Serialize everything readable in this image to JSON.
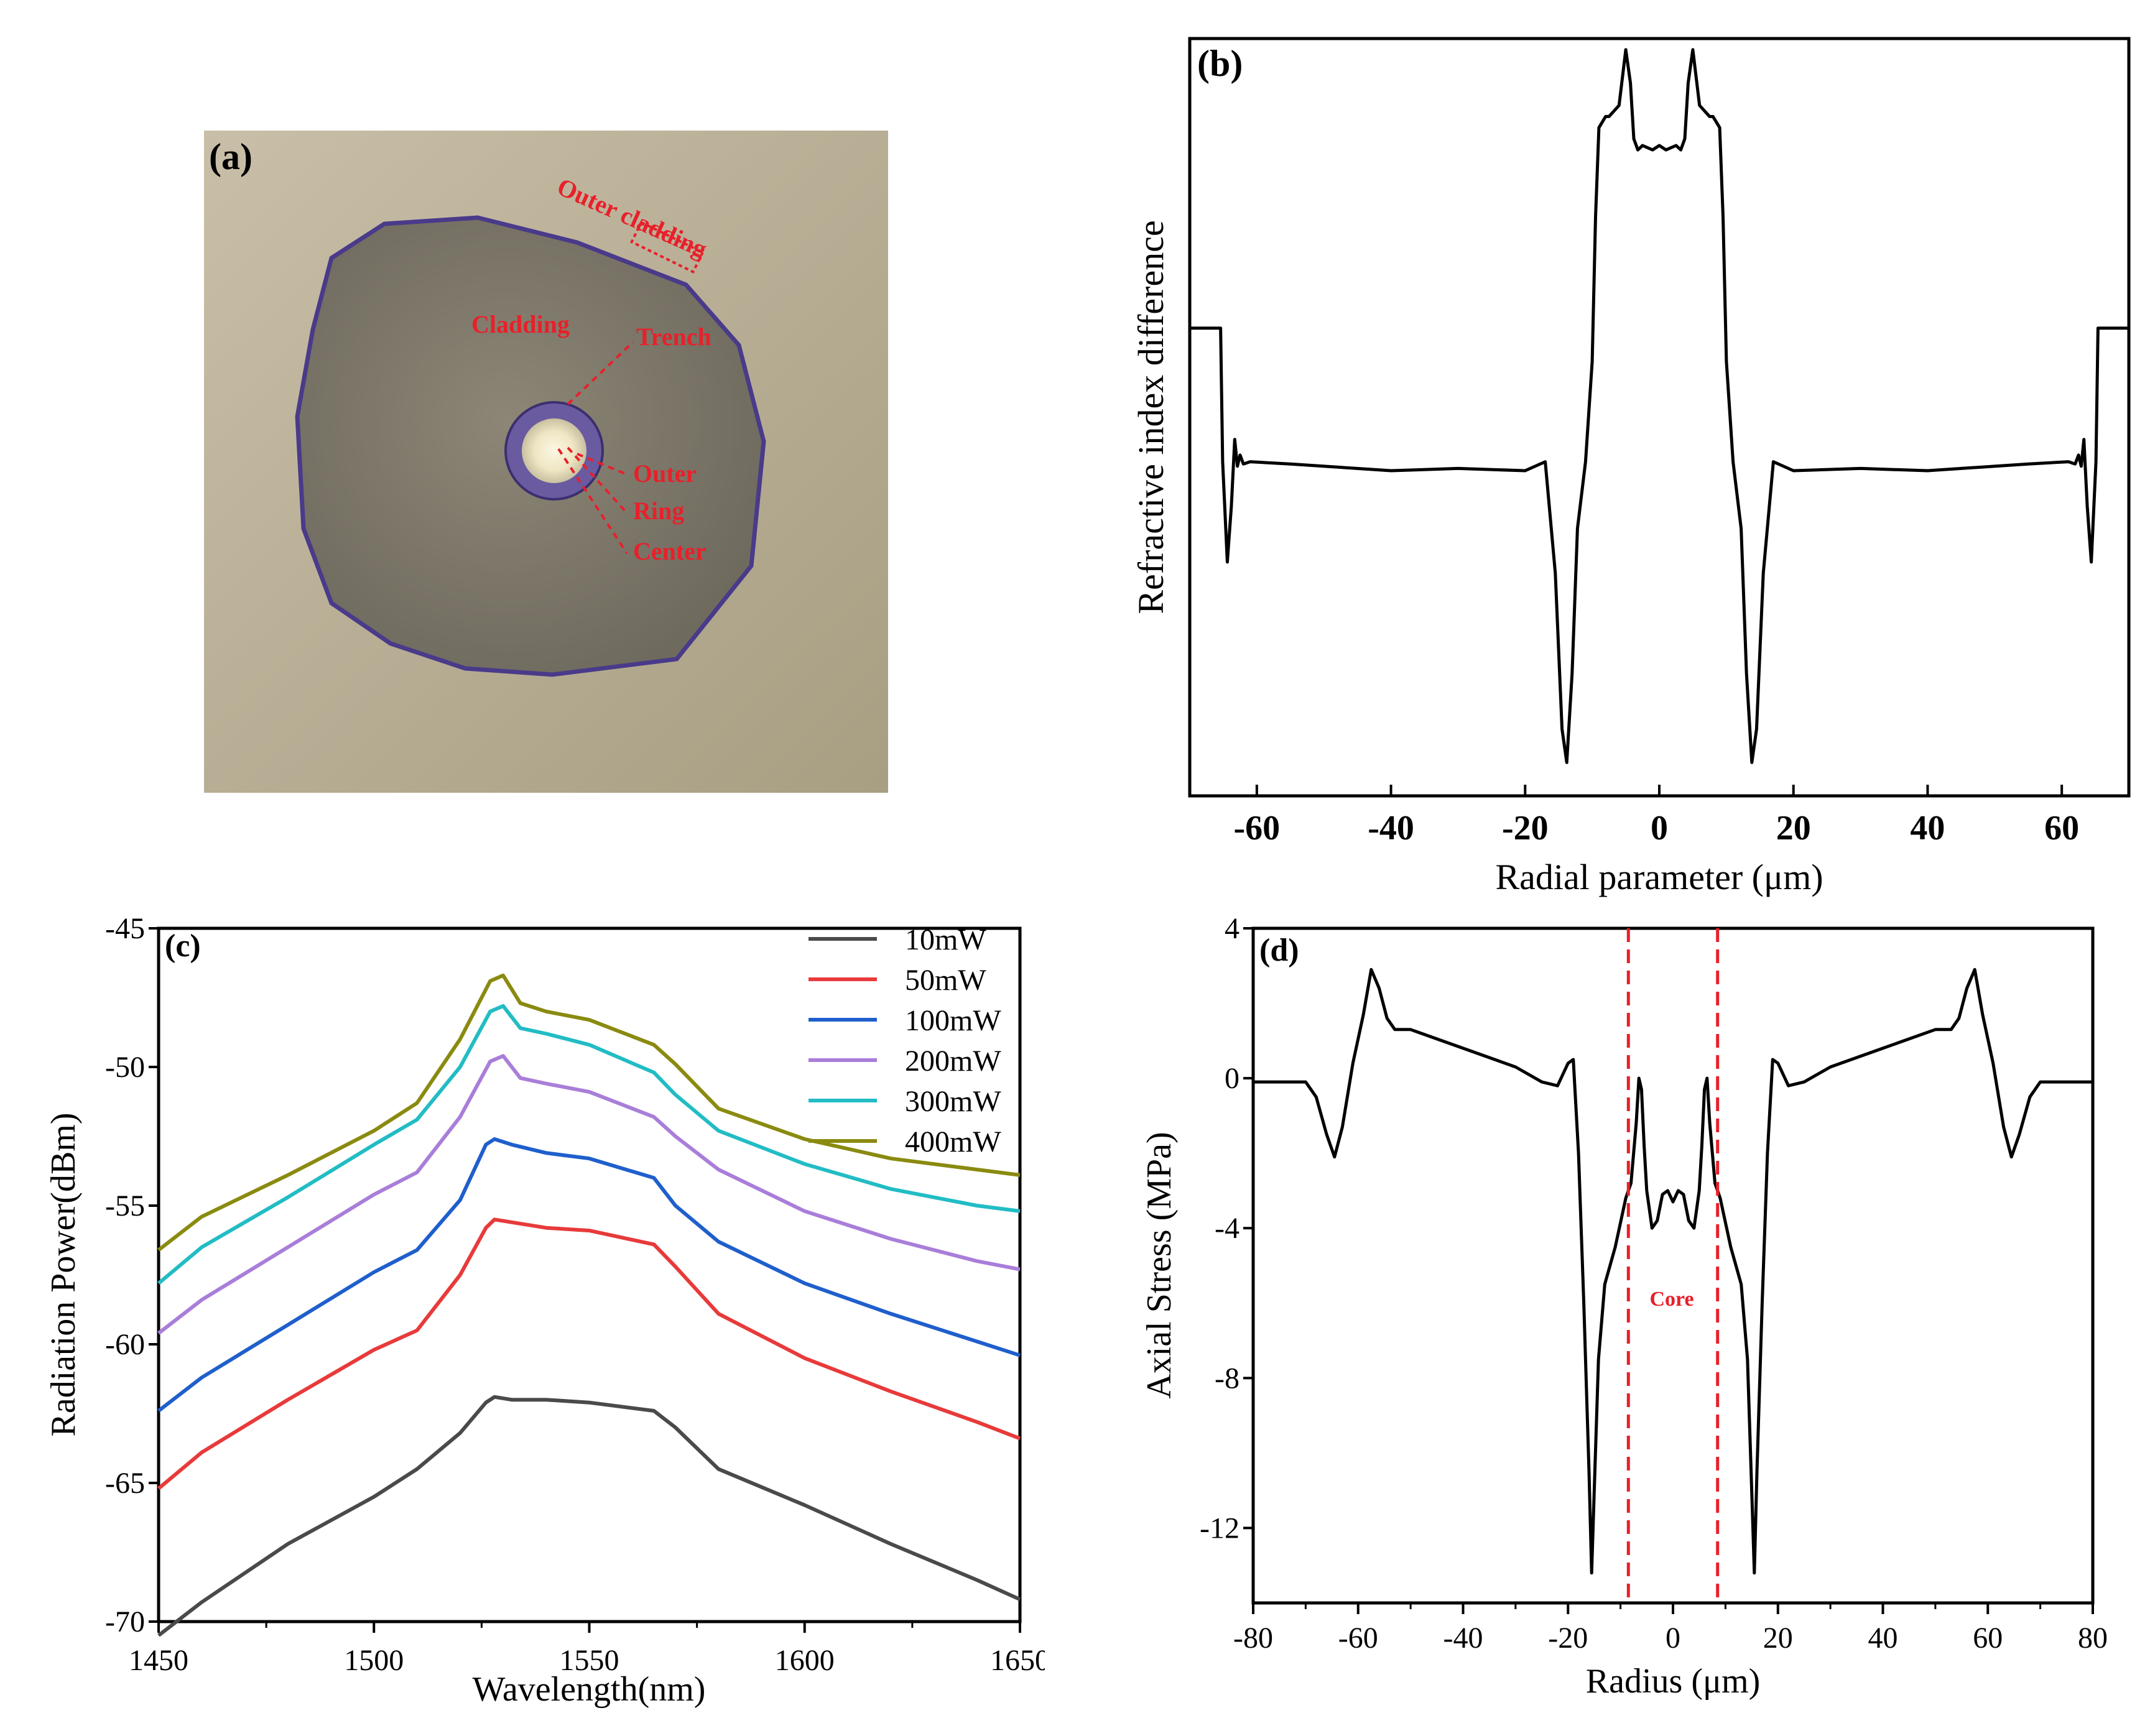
{
  "panels": {
    "a": {
      "label": "(a)",
      "annotations": [
        "Outer cladding",
        "Cladding",
        "Trench",
        "Outer",
        "Ring",
        "Center"
      ]
    },
    "b": {
      "label": "(b)"
    },
    "c": {
      "label": "(c)"
    },
    "d": {
      "label": "(d)",
      "annotation": "Core"
    }
  },
  "colors": {
    "annotation_red": "#e8202a",
    "axis": "#000000"
  },
  "chart_data": [
    {
      "id": "b",
      "type": "line",
      "xlabel": "Radial parameter (μm)",
      "ylabel": "Refractive index difference",
      "xlim": [
        -70,
        70
      ],
      "ylim": [
        -1.5,
        1.9
      ],
      "xticks": [
        -60,
        -40,
        -20,
        0,
        20,
        40,
        60
      ],
      "y_tick_labels_shown": false,
      "series": [
        {
          "x": [
            -70,
            -65.4,
            -65.1,
            -64.4,
            -63.8,
            -63.3,
            -62.9,
            -62.5,
            -62,
            -61,
            -55,
            -40,
            -30,
            -20,
            -17,
            -15.5,
            -14.5,
            -13.8,
            -13,
            -12.2,
            -11,
            -10,
            -9.5,
            -9,
            -8,
            -7.5,
            -6,
            -5,
            -4.3,
            -3.8,
            -3.2,
            -2.5,
            -1,
            0,
            1,
            2.5,
            3.2,
            3.8,
            4.3,
            5,
            6,
            7.5,
            8,
            9,
            9.5,
            10,
            11,
            12.2,
            13,
            13.8,
            14.5,
            15.5,
            17,
            20,
            30,
            40,
            55,
            61,
            62,
            62.5,
            62.9,
            63.3,
            63.8,
            64.4,
            65.1,
            65.4,
            70
          ],
          "y": [
            0.6,
            0.6,
            0.0,
            -0.45,
            -0.2,
            0.1,
            -0.02,
            0.03,
            -0.01,
            0.0,
            -0.01,
            -0.04,
            -0.03,
            -0.04,
            0.0,
            -0.5,
            -1.2,
            -1.35,
            -0.95,
            -0.3,
            0.0,
            0.45,
            1.1,
            1.5,
            1.55,
            1.55,
            1.6,
            1.85,
            1.7,
            1.45,
            1.4,
            1.42,
            1.4,
            1.42,
            1.4,
            1.42,
            1.4,
            1.45,
            1.7,
            1.85,
            1.6,
            1.55,
            1.55,
            1.5,
            1.1,
            0.45,
            0.0,
            -0.3,
            -0.95,
            -1.35,
            -1.2,
            -0.5,
            0.0,
            -0.04,
            -0.03,
            -0.04,
            -0.01,
            0.0,
            -0.01,
            0.03,
            -0.02,
            0.1,
            -0.2,
            -0.45,
            0.0,
            0.6,
            0.6
          ]
        }
      ]
    },
    {
      "id": "c",
      "type": "line",
      "xlabel": "Wavelength(nm)",
      "ylabel": "Radiation Power(dBm)",
      "xlim": [
        1450,
        1650
      ],
      "ylim": [
        -70,
        -45
      ],
      "xticks": [
        1450,
        1500,
        1550,
        1600,
        1650
      ],
      "yticks": [
        -70,
        -65,
        -60,
        -55,
        -50,
        -45
      ],
      "legend": "top-right",
      "series": [
        {
          "name": "10mW",
          "color": "#4a4a4a",
          "x": [
            1450,
            1460,
            1480,
            1500,
            1510,
            1520,
            1526,
            1528,
            1532,
            1540,
            1550,
            1565,
            1570,
            1580,
            1600,
            1620,
            1640,
            1650
          ],
          "y": [
            -70.5,
            -69.3,
            -67.2,
            -65.5,
            -64.5,
            -63.2,
            -62.1,
            -61.9,
            -62.0,
            -62.0,
            -62.1,
            -62.4,
            -63.0,
            -64.5,
            -65.8,
            -67.2,
            -68.5,
            -69.2
          ]
        },
        {
          "name": "50mW",
          "color": "#e83a3a",
          "x": [
            1450,
            1460,
            1480,
            1500,
            1510,
            1520,
            1526,
            1528,
            1532,
            1540,
            1550,
            1565,
            1570,
            1580,
            1600,
            1620,
            1640,
            1650
          ],
          "y": [
            -65.2,
            -63.9,
            -62.0,
            -60.2,
            -59.5,
            -57.5,
            -55.8,
            -55.5,
            -55.6,
            -55.8,
            -55.9,
            -56.4,
            -57.2,
            -58.9,
            -60.5,
            -61.7,
            -62.8,
            -63.4
          ]
        },
        {
          "name": "100mW",
          "color": "#1f5fcc",
          "x": [
            1450,
            1460,
            1480,
            1500,
            1510,
            1520,
            1526,
            1528,
            1532,
            1540,
            1550,
            1565,
            1570,
            1580,
            1600,
            1620,
            1640,
            1650
          ],
          "y": [
            -62.4,
            -61.2,
            -59.3,
            -57.4,
            -56.6,
            -54.8,
            -52.8,
            -52.6,
            -52.8,
            -53.1,
            -53.3,
            -54.0,
            -55.0,
            -56.3,
            -57.8,
            -58.9,
            -59.9,
            -60.4
          ]
        },
        {
          "name": "200mW",
          "color": "#a97ed9",
          "x": [
            1450,
            1460,
            1480,
            1500,
            1510,
            1520,
            1527,
            1530,
            1534,
            1540,
            1550,
            1565,
            1570,
            1580,
            1600,
            1620,
            1640,
            1650
          ],
          "y": [
            -59.6,
            -58.4,
            -56.5,
            -54.6,
            -53.8,
            -51.8,
            -49.8,
            -49.6,
            -50.4,
            -50.6,
            -50.9,
            -51.8,
            -52.5,
            -53.7,
            -55.2,
            -56.2,
            -57.0,
            -57.3
          ]
        },
        {
          "name": "300mW",
          "color": "#22bcc4",
          "x": [
            1450,
            1460,
            1480,
            1500,
            1510,
            1520,
            1527,
            1530,
            1534,
            1540,
            1550,
            1565,
            1570,
            1580,
            1600,
            1620,
            1640,
            1650
          ],
          "y": [
            -57.8,
            -56.5,
            -54.7,
            -52.8,
            -51.9,
            -50.0,
            -48.0,
            -47.8,
            -48.6,
            -48.8,
            -49.2,
            -50.2,
            -51.0,
            -52.3,
            -53.5,
            -54.4,
            -55.0,
            -55.2
          ]
        },
        {
          "name": "400mW",
          "color": "#8a8a10",
          "x": [
            1450,
            1460,
            1480,
            1500,
            1510,
            1520,
            1527,
            1530,
            1534,
            1540,
            1550,
            1565,
            1570,
            1580,
            1600,
            1620,
            1640,
            1650
          ],
          "y": [
            -56.6,
            -55.4,
            -53.9,
            -52.3,
            -51.3,
            -49.0,
            -46.9,
            -46.7,
            -47.7,
            -48.0,
            -48.3,
            -49.2,
            -49.9,
            -51.5,
            -52.6,
            -53.3,
            -53.7,
            -53.9
          ]
        }
      ]
    },
    {
      "id": "d",
      "type": "line",
      "xlabel": "Radius (μm)",
      "ylabel": "Axial Stress (MPa)",
      "xlim": [
        -80,
        80
      ],
      "ylim": [
        -14,
        4
      ],
      "xticks": [
        -80,
        -60,
        -40,
        -20,
        0,
        20,
        40,
        60,
        80
      ],
      "yticks": [
        4,
        0,
        -4,
        -8,
        -12
      ],
      "vlines": [
        -8.5,
        8.5
      ],
      "series": [
        {
          "x": [
            -80,
            -70,
            -68,
            -66,
            -64.5,
            -63,
            -61,
            -59,
            -57.5,
            -56,
            -54.5,
            -53,
            -50,
            -40,
            -30,
            -25,
            -22,
            -20,
            -19,
            -18,
            -17,
            -16,
            -15.5,
            -15,
            -14.2,
            -13,
            -11,
            -9,
            -8,
            -7,
            -6.5,
            -6,
            -5.5,
            -5,
            -4,
            -3,
            -2,
            -1,
            0,
            1,
            2,
            3,
            4,
            5,
            5.5,
            6,
            6.5,
            7,
            8,
            9,
            11,
            13,
            14.2,
            15,
            15.5,
            16,
            17,
            18,
            19,
            20,
            22,
            25,
            30,
            40,
            50,
            53,
            54.5,
            56,
            57.5,
            59,
            61,
            63,
            64.5,
            66,
            68,
            70,
            80
          ],
          "y": [
            -0.1,
            -0.1,
            -0.5,
            -1.5,
            -2.1,
            -1.3,
            0.4,
            1.7,
            2.9,
            2.4,
            1.6,
            1.3,
            1.3,
            0.8,
            0.3,
            -0.1,
            -0.2,
            0.4,
            0.5,
            -2.0,
            -6.0,
            -10.5,
            -13.2,
            -11.0,
            -7.5,
            -5.5,
            -4.5,
            -3.2,
            -2.8,
            -1.2,
            0.0,
            -0.3,
            -1.8,
            -3.0,
            -4.0,
            -3.8,
            -3.1,
            -3.0,
            -3.3,
            -3.0,
            -3.1,
            -3.8,
            -4.0,
            -3.0,
            -1.8,
            -0.3,
            0.0,
            -1.2,
            -2.8,
            -3.2,
            -4.5,
            -5.5,
            -7.5,
            -11.0,
            -13.2,
            -10.5,
            -6.0,
            -2.0,
            0.5,
            0.4,
            -0.2,
            -0.1,
            0.3,
            0.8,
            1.3,
            1.3,
            1.6,
            2.4,
            2.9,
            1.7,
            0.4,
            -1.3,
            -2.1,
            -1.5,
            -0.5,
            -0.1,
            -0.1
          ]
        }
      ]
    }
  ]
}
